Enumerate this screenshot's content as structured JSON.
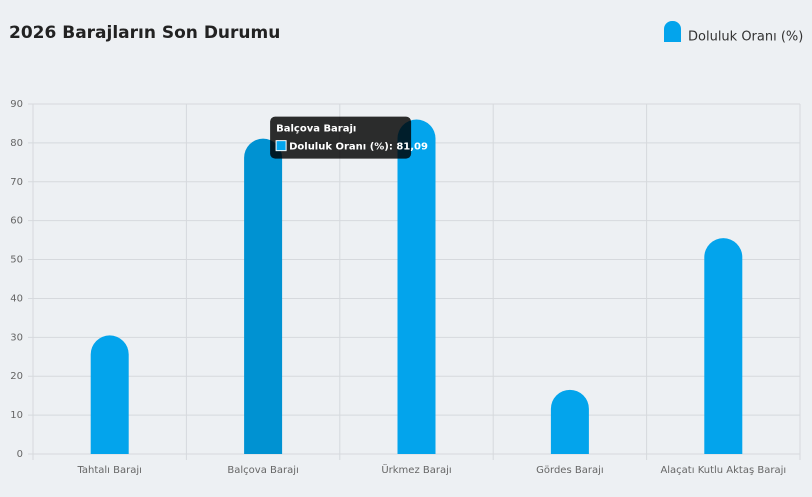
{
  "chart_data": {
    "type": "bar",
    "title": "2026 Barajların Son Durumu",
    "categories": [
      "Tahtalı Barajı",
      "Balçova Barajı",
      "Ürkmez Barajı",
      "Gördes Barajı",
      "Alaçatı Kutlu Aktaş Barajı"
    ],
    "series": [
      {
        "name": "Doluluk Oranı (%)",
        "color": "#03a4ec",
        "values": [
          30.5,
          81.09,
          86,
          16.5,
          55.5
        ]
      }
    ],
    "highlight_color": "#0092d2",
    "ylim": [
      0,
      90
    ],
    "yticks": [
      0,
      10,
      20,
      30,
      40,
      50,
      60,
      70,
      80,
      90
    ],
    "grid": true,
    "legend": "top-right",
    "tooltip": {
      "title": "Balçova Barajı",
      "label": "Doluluk Oranı (%): 81,09"
    }
  }
}
